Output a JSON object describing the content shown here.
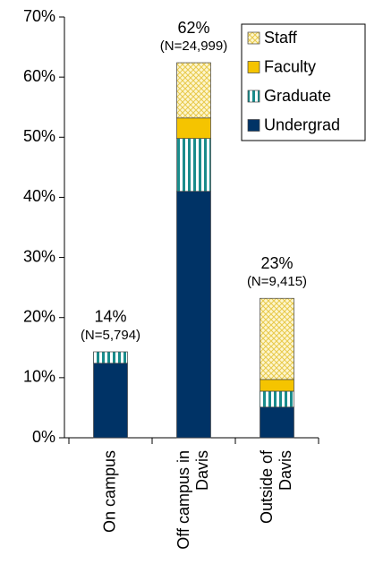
{
  "chart_data": {
    "type": "stacked_bar",
    "categories": [
      "On campus",
      "Off campus in\nDavis",
      "Outside of\nDavis"
    ],
    "series": [
      {
        "name": "Undergrad",
        "color": "#003366",
        "values": [
          12.4,
          41.0,
          5.1
        ]
      },
      {
        "name": "Graduate",
        "color": "#1a8c8c",
        "values": [
          1.9,
          8.8,
          2.65
        ]
      },
      {
        "name": "Faculty",
        "color": "#f5c400",
        "values": [
          0,
          3.4,
          1.95
        ]
      },
      {
        "name": "Staff",
        "color": "#f7e79a",
        "values": [
          0,
          9.2,
          13.5
        ]
      }
    ],
    "annotations": [
      {
        "total": "14%",
        "n": "(N=5,794)"
      },
      {
        "total": "62%",
        "n": "(N=24,999)"
      },
      {
        "total": "23%",
        "n": "(N=9,415)"
      }
    ],
    "ylim": [
      0,
      70
    ],
    "yticks": [
      {
        "value": 0,
        "label": "0%"
      },
      {
        "value": 10,
        "label": "10%"
      },
      {
        "value": 20,
        "label": "20%"
      },
      {
        "value": 30,
        "label": "30%"
      },
      {
        "value": 40,
        "label": "40%"
      },
      {
        "value": 50,
        "label": "50%"
      },
      {
        "value": 60,
        "label": "60%"
      },
      {
        "value": 70,
        "label": "70%"
      }
    ],
    "legend": "upper right"
  }
}
